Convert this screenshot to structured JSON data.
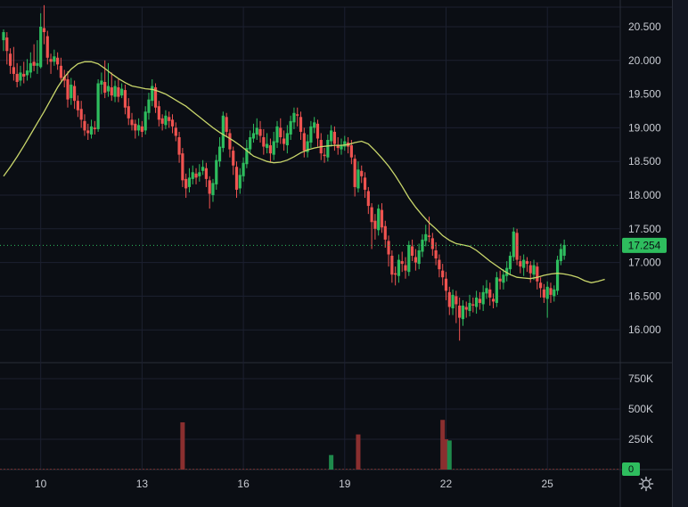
{
  "chart_data": {
    "type": "candlestick",
    "price_ticks": [
      "20.500",
      "20.000",
      "19.500",
      "19.000",
      "18.500",
      "18.000",
      "17.500",
      "17.000",
      "16.500",
      "16.000"
    ],
    "volume_ticks": [
      "750K",
      "500K",
      "250K",
      "0"
    ],
    "x_ticks": [
      {
        "label": "10",
        "idx": 11
      },
      {
        "label": "13",
        "idx": 41
      },
      {
        "label": "16",
        "idx": 71
      },
      {
        "label": "19",
        "idx": 101
      },
      {
        "label": "22",
        "idx": 131
      },
      {
        "label": "25",
        "idx": 161
      }
    ],
    "last_price": "17.254",
    "last_volume_label": "0",
    "colors": {
      "up": "#26a69a",
      "up_bright": "#2ebd5e",
      "down": "#ef5350",
      "ma": "#c9d66b",
      "bg": "#0b0e14",
      "grid": "#1c2030"
    },
    "candles": [
      [
        20.3,
        20.42,
        20.46,
        20.14
      ],
      [
        20.34,
        20.14,
        20.42,
        19.94
      ],
      [
        20.1,
        19.92,
        20.18,
        19.8
      ],
      [
        19.9,
        19.8,
        20.2,
        19.7
      ],
      [
        19.8,
        19.68,
        19.96,
        19.6
      ],
      [
        19.7,
        19.82,
        19.92,
        19.62
      ],
      [
        19.8,
        19.76,
        19.98,
        19.66
      ],
      [
        19.78,
        19.85,
        20.02,
        19.7
      ],
      [
        19.82,
        19.96,
        20.12,
        19.74
      ],
      [
        19.98,
        19.92,
        20.24,
        19.84
      ],
      [
        19.92,
        19.96,
        20.3,
        19.8
      ],
      [
        19.9,
        20.5,
        20.7,
        19.88
      ],
      [
        20.48,
        20.42,
        20.82,
        20.24
      ],
      [
        20.36,
        20.04,
        20.44,
        19.94
      ],
      [
        20.02,
        19.98,
        20.1,
        19.8
      ],
      [
        19.98,
        20.06,
        20.16,
        19.92
      ],
      [
        20.04,
        19.94,
        20.12,
        19.86
      ],
      [
        19.92,
        19.74,
        20.04,
        19.7
      ],
      [
        19.76,
        19.7,
        19.86,
        19.6
      ],
      [
        19.72,
        19.42,
        19.84,
        19.3
      ],
      [
        19.44,
        19.64,
        19.74,
        19.34
      ],
      [
        19.62,
        19.4,
        19.7,
        19.28
      ],
      [
        19.4,
        19.26,
        19.48,
        19.16
      ],
      [
        19.28,
        19.12,
        19.4,
        19.0
      ],
      [
        19.1,
        18.96,
        19.2,
        18.88
      ],
      [
        18.96,
        18.92,
        19.06,
        18.82
      ],
      [
        18.9,
        19.02,
        19.12,
        18.84
      ],
      [
        19.0,
        18.98,
        19.1,
        18.9
      ],
      [
        18.98,
        19.66,
        19.72,
        18.94
      ],
      [
        19.64,
        19.7,
        19.82,
        19.5
      ],
      [
        19.68,
        19.52,
        20.0,
        19.44
      ],
      [
        19.54,
        19.62,
        19.96,
        19.46
      ],
      [
        19.6,
        19.48,
        19.82,
        19.4
      ],
      [
        19.46,
        19.62,
        19.7,
        19.38
      ],
      [
        19.6,
        19.46,
        19.72,
        19.38
      ],
      [
        19.48,
        19.58,
        19.66,
        19.44
      ],
      [
        19.56,
        19.3,
        19.64,
        19.2
      ],
      [
        19.32,
        19.14,
        19.44,
        19.04
      ],
      [
        19.12,
        19.04,
        19.22,
        18.96
      ],
      [
        19.06,
        18.96,
        19.12,
        18.84
      ],
      [
        18.96,
        19.04,
        19.14,
        18.88
      ],
      [
        19.02,
        18.94,
        19.1,
        18.86
      ],
      [
        18.96,
        19.24,
        19.32,
        18.9
      ],
      [
        19.22,
        19.42,
        19.52,
        19.12
      ],
      [
        19.4,
        19.62,
        19.72,
        19.32
      ],
      [
        19.6,
        19.3,
        19.66,
        19.22
      ],
      [
        19.32,
        19.12,
        19.4,
        19.02
      ],
      [
        19.14,
        19.06,
        19.2,
        18.96
      ],
      [
        19.04,
        19.18,
        19.26,
        18.98
      ],
      [
        19.16,
        19.1,
        19.24,
        19.0
      ],
      [
        19.12,
        19.02,
        19.2,
        18.92
      ],
      [
        19.0,
        18.88,
        19.08,
        18.8
      ],
      [
        18.86,
        18.6,
        18.94,
        18.48
      ],
      [
        18.62,
        18.22,
        18.7,
        18.12
      ],
      [
        18.24,
        18.1,
        18.32,
        17.96
      ],
      [
        18.12,
        18.26,
        18.4,
        18.04
      ],
      [
        18.24,
        18.34,
        18.44,
        18.16
      ],
      [
        18.32,
        18.26,
        18.4,
        18.16
      ],
      [
        18.28,
        18.34,
        18.46,
        18.2
      ],
      [
        18.36,
        18.42,
        18.52,
        18.3
      ],
      [
        18.4,
        18.24,
        18.48,
        18.12
      ],
      [
        18.22,
        18.02,
        18.28,
        17.8
      ],
      [
        18.0,
        18.18,
        18.24,
        17.9
      ],
      [
        18.16,
        18.52,
        18.6,
        18.08
      ],
      [
        18.5,
        18.72,
        18.86,
        18.42
      ],
      [
        18.7,
        19.18,
        19.24,
        18.64
      ],
      [
        19.16,
        18.94,
        19.22,
        18.86
      ],
      [
        18.92,
        18.68,
        18.98,
        18.56
      ],
      [
        18.66,
        18.44,
        18.72,
        18.3
      ],
      [
        18.42,
        18.08,
        18.5,
        17.96
      ],
      [
        18.1,
        18.3,
        18.4,
        18.02
      ],
      [
        18.28,
        18.48,
        18.56,
        18.2
      ],
      [
        18.46,
        18.7,
        18.82,
        18.4
      ],
      [
        18.68,
        18.86,
        18.96,
        18.6
      ],
      [
        18.84,
        18.92,
        19.06,
        18.78
      ],
      [
        18.9,
        19.0,
        19.14,
        18.82
      ],
      [
        18.98,
        18.88,
        19.1,
        18.78
      ],
      [
        18.86,
        18.72,
        18.98,
        18.6
      ],
      [
        18.7,
        18.76,
        18.92,
        18.62
      ],
      [
        18.74,
        18.62,
        18.84,
        18.48
      ],
      [
        18.6,
        18.8,
        18.94,
        18.52
      ],
      [
        18.78,
        19.02,
        19.1,
        18.7
      ],
      [
        19.0,
        18.86,
        19.14,
        18.76
      ],
      [
        18.84,
        18.76,
        18.96,
        18.66
      ],
      [
        18.74,
        18.92,
        19.04,
        18.62
      ],
      [
        18.9,
        19.1,
        19.18,
        18.82
      ],
      [
        19.08,
        19.22,
        19.3,
        18.98
      ],
      [
        19.2,
        19.18,
        19.3,
        19.02
      ],
      [
        19.16,
        18.94,
        19.24,
        18.82
      ],
      [
        18.92,
        18.66,
        19.0,
        18.56
      ],
      [
        18.64,
        18.8,
        18.9,
        18.56
      ],
      [
        18.78,
        19.02,
        19.1,
        18.7
      ],
      [
        19.0,
        19.08,
        19.16,
        18.92
      ],
      [
        19.06,
        18.84,
        19.12,
        18.72
      ],
      [
        18.82,
        18.62,
        18.92,
        18.52
      ],
      [
        18.6,
        18.58,
        18.7,
        18.48
      ],
      [
        18.56,
        18.82,
        18.9,
        18.5
      ],
      [
        18.8,
        18.96,
        19.04,
        18.72
      ],
      [
        18.94,
        18.76,
        19.02,
        18.66
      ],
      [
        18.74,
        18.7,
        18.86,
        18.6
      ],
      [
        18.68,
        18.74,
        18.84,
        18.6
      ],
      [
        18.72,
        18.8,
        18.88,
        18.66
      ],
      [
        18.78,
        18.72,
        18.86,
        18.62
      ],
      [
        18.74,
        18.56,
        18.82,
        18.46
      ],
      [
        18.54,
        18.12,
        18.6,
        17.98
      ],
      [
        18.1,
        18.38,
        18.5,
        18.04
      ],
      [
        18.36,
        18.28,
        18.44,
        18.18
      ],
      [
        18.26,
        18.08,
        18.34,
        17.96
      ],
      [
        18.06,
        17.84,
        18.12,
        17.72
      ],
      [
        17.82,
        17.6,
        17.88,
        17.2
      ],
      [
        17.62,
        17.5,
        17.72,
        17.34
      ],
      [
        17.48,
        17.8,
        17.86,
        17.4
      ],
      [
        17.78,
        17.52,
        17.88,
        17.44
      ],
      [
        17.54,
        17.34,
        17.62,
        17.22
      ],
      [
        17.32,
        17.12,
        17.4,
        16.94
      ],
      [
        17.1,
        16.82,
        17.18,
        16.7
      ],
      [
        16.84,
        16.82,
        16.94,
        16.66
      ],
      [
        16.8,
        17.04,
        17.12,
        16.7
      ],
      [
        17.02,
        16.98,
        17.16,
        16.86
      ],
      [
        16.96,
        16.88,
        17.08,
        16.76
      ],
      [
        16.86,
        17.26,
        17.32,
        16.8
      ],
      [
        17.24,
        17.1,
        17.34,
        17.02
      ],
      [
        17.08,
        17.0,
        17.2,
        16.88
      ],
      [
        16.98,
        17.18,
        17.28,
        16.9
      ],
      [
        17.16,
        17.34,
        17.42,
        17.08
      ],
      [
        17.32,
        17.42,
        17.56,
        17.24
      ],
      [
        17.4,
        17.38,
        17.68,
        17.3
      ],
      [
        17.36,
        17.2,
        17.44,
        17.1
      ],
      [
        17.18,
        17.06,
        17.3,
        16.96
      ],
      [
        17.04,
        16.9,
        17.12,
        16.78
      ],
      [
        16.88,
        16.78,
        16.98,
        16.66
      ],
      [
        16.76,
        16.58,
        16.86,
        16.44
      ],
      [
        16.56,
        16.34,
        16.64,
        16.22
      ],
      [
        16.32,
        16.52,
        16.6,
        16.22
      ],
      [
        16.5,
        16.38,
        16.58,
        16.1
      ],
      [
        16.36,
        16.18,
        16.48,
        15.84
      ],
      [
        16.16,
        16.36,
        16.44,
        16.06
      ],
      [
        16.34,
        16.3,
        16.42,
        16.18
      ],
      [
        16.28,
        16.4,
        16.52,
        16.2
      ],
      [
        16.38,
        16.36,
        16.48,
        16.26
      ],
      [
        16.34,
        16.48,
        16.58,
        16.24
      ],
      [
        16.46,
        16.4,
        16.56,
        16.3
      ],
      [
        16.38,
        16.56,
        16.66,
        16.28
      ],
      [
        16.54,
        16.62,
        16.74,
        16.46
      ],
      [
        16.6,
        16.48,
        16.7,
        16.36
      ],
      [
        16.46,
        16.42,
        16.54,
        16.32
      ],
      [
        16.4,
        16.78,
        16.86,
        16.34
      ],
      [
        16.76,
        16.72,
        16.88,
        16.6
      ],
      [
        16.7,
        16.82,
        16.9,
        16.6
      ],
      [
        16.8,
        16.92,
        17.02,
        16.72
      ],
      [
        16.9,
        17.1,
        17.16,
        16.82
      ],
      [
        17.08,
        17.46,
        17.52,
        17.02
      ],
      [
        17.44,
        17.04,
        17.5,
        16.96
      ],
      [
        17.02,
        16.94,
        17.1,
        16.84
      ],
      [
        16.92,
        17.04,
        17.12,
        16.8
      ],
      [
        17.02,
        16.98,
        17.08,
        16.86
      ],
      [
        16.96,
        16.84,
        17.02,
        16.7
      ],
      [
        16.82,
        16.96,
        17.04,
        16.74
      ],
      [
        16.94,
        16.72,
        17.0,
        16.6
      ],
      [
        16.7,
        16.62,
        16.78,
        16.48
      ],
      [
        16.6,
        16.48,
        16.68,
        16.4
      ],
      [
        16.46,
        16.64,
        16.72,
        16.18
      ],
      [
        16.62,
        16.52,
        16.7,
        16.4
      ],
      [
        16.5,
        16.6,
        16.66,
        16.42
      ],
      [
        16.58,
        17.04,
        17.1,
        16.52
      ],
      [
        17.02,
        17.2,
        17.28,
        16.96
      ],
      [
        17.1,
        17.26,
        17.34,
        17.04
      ]
    ],
    "ma": [
      [
        0,
        18.28
      ],
      [
        2,
        18.42
      ],
      [
        4,
        18.57
      ],
      [
        6,
        18.73
      ],
      [
        8,
        18.9
      ],
      [
        10,
        19.07
      ],
      [
        12,
        19.24
      ],
      [
        14,
        19.42
      ],
      [
        16,
        19.6
      ],
      [
        18,
        19.75
      ],
      [
        20,
        19.87
      ],
      [
        22,
        19.95
      ],
      [
        24,
        19.98
      ],
      [
        26,
        19.98
      ],
      [
        28,
        19.95
      ],
      [
        30,
        19.88
      ],
      [
        32,
        19.8
      ],
      [
        34,
        19.73
      ],
      [
        36,
        19.67
      ],
      [
        38,
        19.62
      ],
      [
        40,
        19.6
      ],
      [
        42,
        19.58
      ],
      [
        44,
        19.57
      ],
      [
        46,
        19.54
      ],
      [
        48,
        19.5
      ],
      [
        50,
        19.44
      ],
      [
        52,
        19.38
      ],
      [
        54,
        19.32
      ],
      [
        56,
        19.24
      ],
      [
        58,
        19.16
      ],
      [
        60,
        19.08
      ],
      [
        62,
        19.0
      ],
      [
        64,
        18.93
      ],
      [
        66,
        18.87
      ],
      [
        68,
        18.81
      ],
      [
        70,
        18.74
      ],
      [
        72,
        18.66
      ],
      [
        74,
        18.58
      ],
      [
        76,
        18.54
      ],
      [
        78,
        18.5
      ],
      [
        80,
        18.48
      ],
      [
        82,
        18.49
      ],
      [
        84,
        18.52
      ],
      [
        86,
        18.57
      ],
      [
        88,
        18.63
      ],
      [
        90,
        18.67
      ],
      [
        92,
        18.7
      ],
      [
        94,
        18.72
      ],
      [
        96,
        18.73
      ],
      [
        98,
        18.74
      ],
      [
        100,
        18.74
      ],
      [
        102,
        18.75
      ],
      [
        104,
        18.78
      ],
      [
        106,
        18.8
      ],
      [
        108,
        18.76
      ],
      [
        110,
        18.66
      ],
      [
        112,
        18.55
      ],
      [
        114,
        18.43
      ],
      [
        116,
        18.29
      ],
      [
        118,
        18.13
      ],
      [
        120,
        17.96
      ],
      [
        122,
        17.82
      ],
      [
        124,
        17.7
      ],
      [
        126,
        17.59
      ],
      [
        128,
        17.5
      ],
      [
        130,
        17.4
      ],
      [
        132,
        17.33
      ],
      [
        134,
        17.28
      ],
      [
        136,
        17.26
      ],
      [
        138,
        17.24
      ],
      [
        140,
        17.18
      ],
      [
        142,
        17.1
      ],
      [
        144,
        17.02
      ],
      [
        146,
        16.95
      ],
      [
        148,
        16.88
      ],
      [
        150,
        16.82
      ],
      [
        152,
        16.78
      ],
      [
        154,
        16.77
      ],
      [
        156,
        16.76
      ],
      [
        158,
        16.78
      ],
      [
        160,
        16.81
      ],
      [
        162,
        16.83
      ],
      [
        164,
        16.84
      ],
      [
        166,
        16.83
      ],
      [
        168,
        16.81
      ],
      [
        170,
        16.78
      ],
      [
        172,
        16.73
      ],
      [
        174,
        16.7
      ],
      [
        176,
        16.72
      ],
      [
        178,
        16.75
      ]
    ],
    "volume_bars": [
      {
        "idx": 53,
        "value": 390000,
        "dir": "down"
      },
      {
        "idx": 97,
        "value": 120000,
        "dir": "up"
      },
      {
        "idx": 105,
        "value": 290000,
        "dir": "down"
      },
      {
        "idx": 130,
        "value": 410000,
        "dir": "down"
      },
      {
        "idx": 131,
        "value": 250000,
        "dir": "down"
      },
      {
        "idx": 132,
        "value": 240000,
        "dir": "up"
      }
    ]
  }
}
